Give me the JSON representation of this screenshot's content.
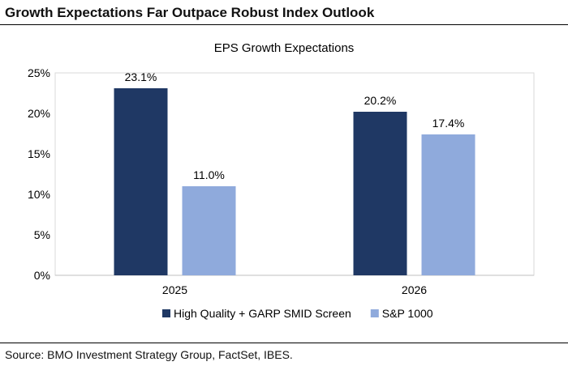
{
  "header": {
    "title": "Growth Expectations Far Outpace Robust Index Outlook"
  },
  "footer": {
    "source": "Source: BMO Investment Strategy Group, FactSet, IBES."
  },
  "chart_data": {
    "type": "bar",
    "title": "EPS Growth Expectations",
    "categories": [
      "2025",
      "2026"
    ],
    "series": [
      {
        "name": "High Quality + GARP SMID Screen",
        "values": [
          23.1,
          20.2
        ],
        "labels": [
          "23.1%",
          "20.2%"
        ],
        "color": "#1f3864"
      },
      {
        "name": "S&P 1000",
        "values": [
          11.0,
          17.4
        ],
        "labels": [
          "11.0%",
          "17.4%"
        ],
        "color": "#8faadc"
      }
    ],
    "yticks": [
      "0%",
      "5%",
      "10%",
      "15%",
      "20%",
      "25%"
    ],
    "ylim": [
      0,
      25
    ],
    "grid": false,
    "legend": "bottom"
  }
}
